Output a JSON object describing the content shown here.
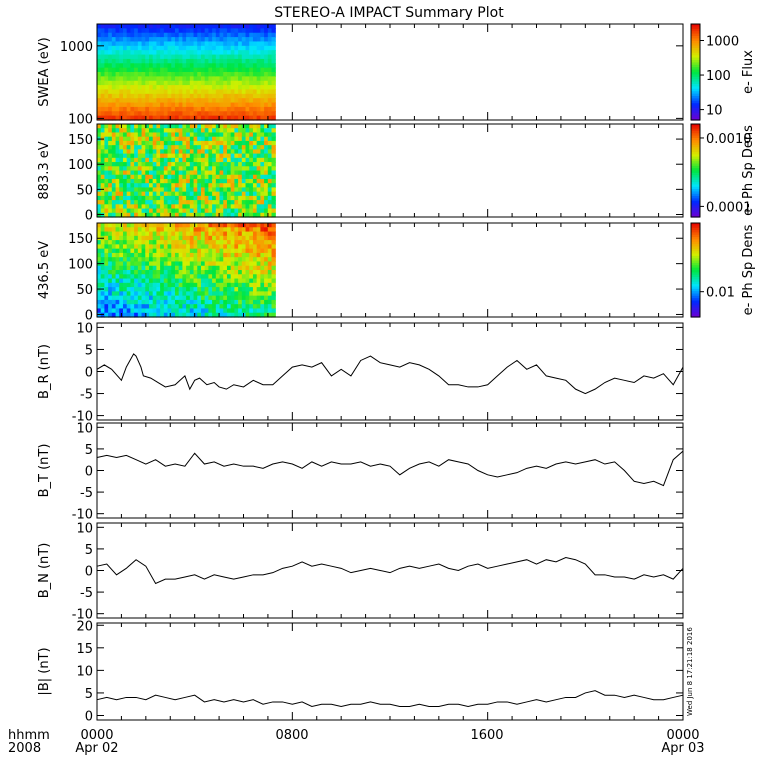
{
  "title": "STEREO-A IMPACT Summary Plot",
  "footer": {
    "hhmm": "hhmm",
    "year": "2008",
    "start_label": "0000",
    "start_date": "Apr 02",
    "mid_label": "0800",
    "mid2_label": "1600",
    "end_label": "0000",
    "end_date": "Apr 03"
  },
  "timestamp": "Wed Jun  8 17:21:18 2016",
  "chart_data": [
    {
      "type": "heatmap",
      "ylabel": "SWEA (eV)",
      "yscale": "log",
      "ylim": [
        95,
        2000
      ],
      "yticks": [
        100,
        1000
      ],
      "ytick_labels": [
        "100",
        "1000"
      ],
      "data_x_range": [
        0,
        7.3
      ],
      "colorbar": {
        "label": "e- Flux",
        "scale": "log",
        "range": [
          5,
          3000
        ],
        "ticks": [
          10,
          100,
          1000
        ],
        "tick_labels": [
          "10",
          "100",
          "1000"
        ]
      }
    },
    {
      "type": "heatmap",
      "ylabel": "883.3 eV",
      "ylim": [
        -5,
        180
      ],
      "yticks": [
        0,
        50,
        100,
        150
      ],
      "data_x_range": [
        0,
        7.3
      ],
      "colorbar": {
        "label": "e- Ph Sp Dens",
        "scale": "log",
        "range": [
          7e-05,
          0.0016
        ],
        "ticks": [
          0.0001,
          0.001
        ],
        "tick_labels": [
          "0.0001",
          "0.0010"
        ]
      }
    },
    {
      "type": "heatmap",
      "ylabel": "436.5 eV",
      "ylim": [
        -5,
        180
      ],
      "yticks": [
        0,
        50,
        100,
        150
      ],
      "data_x_range": [
        0,
        7.3
      ],
      "colorbar": {
        "label": "e- Ph Sp Dens",
        "scale": "log",
        "range": [
          0.006,
          0.04
        ],
        "ticks": [
          0.01
        ],
        "tick_labels": [
          "0.01"
        ]
      }
    },
    {
      "type": "line",
      "ylabel": "B_R (nT)",
      "ylim": [
        -11,
        11
      ],
      "yticks": [
        -10,
        -5,
        0,
        5,
        10
      ],
      "x": [
        0,
        0.3,
        0.6,
        1.0,
        1.2,
        1.5,
        1.6,
        1.8,
        1.9,
        2.2,
        2.5,
        2.8,
        3.2,
        3.6,
        3.8,
        4.0,
        4.2,
        4.5,
        4.8,
        5.0,
        5.3,
        5.6,
        6.0,
        6.4,
        6.8,
        7.2,
        7.6,
        8.0,
        8.4,
        8.8,
        9.2,
        9.6,
        10.0,
        10.4,
        10.8,
        11.2,
        11.6,
        12.0,
        12.4,
        12.8,
        13.2,
        13.6,
        14.0,
        14.4,
        14.8,
        15.2,
        15.6,
        16.0,
        16.4,
        16.8,
        17.2,
        17.6,
        18.0,
        18.4,
        18.8,
        19.2,
        19.6,
        20.0,
        20.4,
        20.8,
        21.2,
        21.6,
        22.0,
        22.4,
        22.8,
        23.2,
        23.6,
        24.0
      ],
      "y": [
        0.5,
        1.5,
        0.5,
        -2.0,
        1.0,
        4.0,
        3.5,
        1.0,
        -1.0,
        -1.5,
        -2.5,
        -3.5,
        -3.0,
        -1.0,
        -4.0,
        -2.0,
        -1.5,
        -3.0,
        -2.5,
        -3.5,
        -4.0,
        -3.0,
        -3.5,
        -2.0,
        -3.0,
        -3.0,
        -1.0,
        1.0,
        1.5,
        1.0,
        2.0,
        -1.0,
        0.5,
        -1.0,
        2.5,
        3.5,
        2.0,
        1.5,
        1.0,
        2.0,
        1.5,
        0.5,
        -1.0,
        -3.0,
        -3.0,
        -3.5,
        -3.5,
        -3.0,
        -1.0,
        1.0,
        2.5,
        0.5,
        1.5,
        -1.0,
        -1.5,
        -2.0,
        -4.0,
        -5.0,
        -4.0,
        -2.5,
        -1.5,
        -2.0,
        -2.5,
        -1.0,
        -1.5,
        -0.5,
        -3.0,
        1.0
      ]
    },
    {
      "type": "line",
      "ylabel": "B_T (nT)",
      "ylim": [
        -11,
        11
      ],
      "yticks": [
        -10,
        -5,
        0,
        5,
        10
      ],
      "x": [
        0,
        0.4,
        0.8,
        1.2,
        1.6,
        2.0,
        2.4,
        2.8,
        3.2,
        3.6,
        4.0,
        4.4,
        4.8,
        5.2,
        5.6,
        6.0,
        6.4,
        6.8,
        7.2,
        7.6,
        8.0,
        8.4,
        8.8,
        9.2,
        9.6,
        10.0,
        10.4,
        10.8,
        11.2,
        11.6,
        12.0,
        12.4,
        12.8,
        13.2,
        13.6,
        14.0,
        14.4,
        14.8,
        15.2,
        15.6,
        16.0,
        16.4,
        16.8,
        17.2,
        17.6,
        18.0,
        18.4,
        18.8,
        19.2,
        19.6,
        20.0,
        20.4,
        20.8,
        21.2,
        21.6,
        22.0,
        22.4,
        22.8,
        23.2,
        23.6,
        24.0
      ],
      "y": [
        3.0,
        3.5,
        3.0,
        3.5,
        2.5,
        1.5,
        2.5,
        1.0,
        1.5,
        1.0,
        4.0,
        1.5,
        2.0,
        1.0,
        1.5,
        1.0,
        1.0,
        0.5,
        1.5,
        2.0,
        1.5,
        0.5,
        2.0,
        1.0,
        2.0,
        1.5,
        1.5,
        2.0,
        1.0,
        1.5,
        1.0,
        -1.0,
        0.5,
        1.5,
        2.0,
        1.0,
        2.5,
        2.0,
        1.5,
        0.0,
        -1.0,
        -1.5,
        -1.0,
        -0.5,
        0.5,
        1.0,
        0.5,
        1.5,
        2.0,
        1.5,
        2.0,
        2.5,
        1.5,
        2.0,
        0.0,
        -2.5,
        -3.0,
        -2.5,
        -3.5,
        2.5,
        4.5
      ]
    },
    {
      "type": "line",
      "ylabel": "B_N (nT)",
      "ylim": [
        -11,
        11
      ],
      "yticks": [
        -10,
        -5,
        0,
        5,
        10
      ],
      "x": [
        0,
        0.4,
        0.8,
        1.2,
        1.6,
        2.0,
        2.4,
        2.8,
        3.2,
        3.6,
        4.0,
        4.4,
        4.8,
        5.2,
        5.6,
        6.0,
        6.4,
        6.8,
        7.2,
        7.6,
        8.0,
        8.4,
        8.8,
        9.2,
        9.6,
        10.0,
        10.4,
        10.8,
        11.2,
        11.6,
        12.0,
        12.4,
        12.8,
        13.2,
        13.6,
        14.0,
        14.4,
        14.8,
        15.2,
        15.6,
        16.0,
        16.4,
        16.8,
        17.2,
        17.6,
        18.0,
        18.4,
        18.8,
        19.2,
        19.6,
        20.0,
        20.4,
        20.8,
        21.2,
        21.6,
        22.0,
        22.4,
        22.8,
        23.2,
        23.6,
        24.0
      ],
      "y": [
        1.0,
        1.5,
        -1.0,
        0.5,
        2.5,
        1.0,
        -3.0,
        -2.0,
        -2.0,
        -1.5,
        -1.0,
        -2.0,
        -1.0,
        -1.5,
        -2.0,
        -1.5,
        -1.0,
        -1.0,
        -0.5,
        0.5,
        1.0,
        2.0,
        1.0,
        1.5,
        1.0,
        0.5,
        -0.5,
        0.0,
        0.5,
        0.0,
        -0.5,
        0.5,
        1.0,
        0.5,
        1.0,
        1.5,
        0.5,
        0.0,
        1.0,
        1.5,
        0.5,
        1.0,
        1.5,
        2.0,
        2.5,
        1.5,
        2.5,
        2.0,
        3.0,
        2.5,
        1.5,
        -1.0,
        -1.0,
        -1.5,
        -1.5,
        -2.0,
        -1.0,
        -1.5,
        -1.0,
        -2.0,
        0.5
      ]
    },
    {
      "type": "line",
      "ylabel": "|B| (nT)",
      "ylim": [
        -1,
        20.5
      ],
      "yticks": [
        0,
        5,
        10,
        15,
        20
      ],
      "x": [
        0,
        0.4,
        0.8,
        1.2,
        1.6,
        2.0,
        2.4,
        2.8,
        3.2,
        3.6,
        4.0,
        4.4,
        4.8,
        5.2,
        5.6,
        6.0,
        6.4,
        6.8,
        7.2,
        7.6,
        8.0,
        8.4,
        8.8,
        9.2,
        9.6,
        10.0,
        10.4,
        10.8,
        11.2,
        11.6,
        12.0,
        12.4,
        12.8,
        13.2,
        13.6,
        14.0,
        14.4,
        14.8,
        15.2,
        15.6,
        16.0,
        16.4,
        16.8,
        17.2,
        17.6,
        18.0,
        18.4,
        18.8,
        19.2,
        19.6,
        20.0,
        20.4,
        20.8,
        21.2,
        21.6,
        22.0,
        22.4,
        22.8,
        23.2,
        23.6,
        24.0
      ],
      "y": [
        3.5,
        4.0,
        3.5,
        4.0,
        4.0,
        3.5,
        4.5,
        4.0,
        3.5,
        4.0,
        4.5,
        3.0,
        3.5,
        3.0,
        3.5,
        3.0,
        3.5,
        2.5,
        3.0,
        3.0,
        2.5,
        3.0,
        2.0,
        2.5,
        2.5,
        2.0,
        2.5,
        2.5,
        3.0,
        2.5,
        2.5,
        2.0,
        2.0,
        2.5,
        2.0,
        2.0,
        2.5,
        2.5,
        2.0,
        2.5,
        2.5,
        3.0,
        3.0,
        2.5,
        3.0,
        3.5,
        3.0,
        3.5,
        4.0,
        4.0,
        5.0,
        5.5,
        4.5,
        4.5,
        4.0,
        4.5,
        4.0,
        3.5,
        3.5,
        4.0,
        4.5
      ]
    }
  ]
}
